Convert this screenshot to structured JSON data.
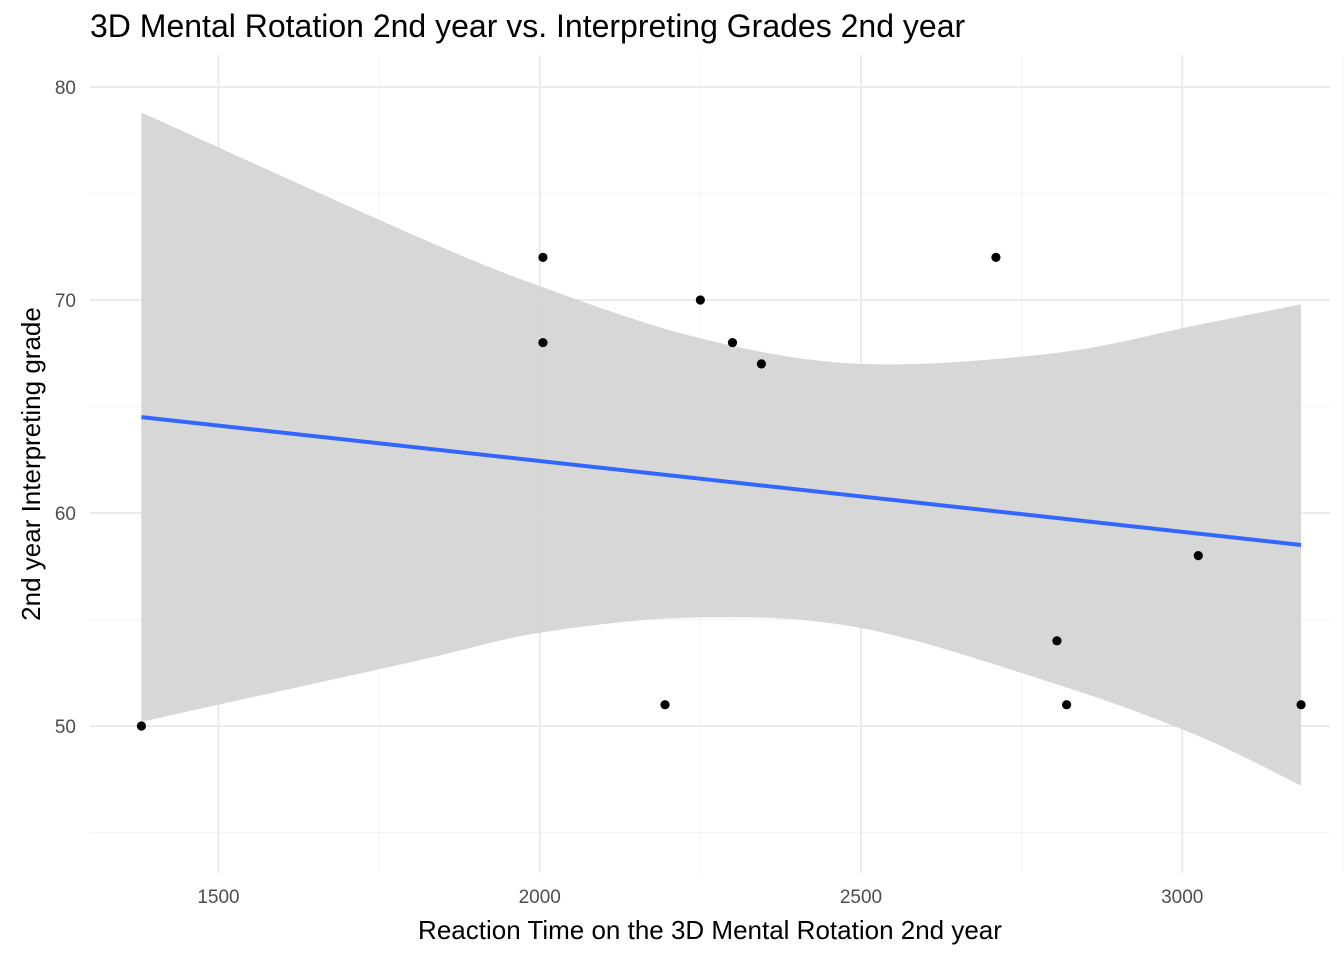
{
  "chart_data": {
    "type": "scatter",
    "title": "3D Mental Rotation 2nd year vs. Interpreting Grades 2nd year",
    "xlabel": "Reaction Time on the 3D Mental Rotation 2nd year",
    "ylabel": "2nd year Interpreting grade",
    "xlim": [
      1300,
      3230
    ],
    "ylim": [
      43.1,
      81.5
    ],
    "x_ticks": [
      1500,
      2000,
      2500,
      3000
    ],
    "y_ticks": [
      50,
      60,
      70,
      80
    ],
    "x_minor_ticks": [
      1750,
      2250,
      2750,
      3250
    ],
    "y_minor_ticks": [
      45,
      55,
      65,
      75
    ],
    "grid": true,
    "points": [
      {
        "x": 1380,
        "y": 50
      },
      {
        "x": 2005,
        "y": 72
      },
      {
        "x": 2005,
        "y": 68
      },
      {
        "x": 2195,
        "y": 51
      },
      {
        "x": 2250,
        "y": 70
      },
      {
        "x": 2300,
        "y": 68
      },
      {
        "x": 2345,
        "y": 67
      },
      {
        "x": 2710,
        "y": 72
      },
      {
        "x": 2805,
        "y": 54
      },
      {
        "x": 2820,
        "y": 51
      },
      {
        "x": 3025,
        "y": 58
      },
      {
        "x": 3185,
        "y": 51
      }
    ],
    "fit_line": {
      "x": [
        1380,
        3185
      ],
      "y": [
        64.5,
        58.5
      ]
    },
    "confidence_band": {
      "x": [
        1380,
        1800,
        2005,
        2250,
        2500,
        2800,
        3020,
        3185
      ],
      "upper": [
        78.8,
        73.1,
        70.6,
        68.2,
        67.0,
        67.5,
        68.8,
        69.8
      ],
      "lower": [
        50.2,
        53.0,
        54.4,
        55.1,
        54.6,
        52.0,
        49.6,
        47.2
      ]
    },
    "colors": {
      "points": "#000000",
      "fit_line": "#3366FF",
      "band": "#d5d5d5",
      "grid_major": "#ebebeb",
      "grid_minor": "#f5f5f5",
      "tick_text": "#4d4d4d"
    }
  }
}
